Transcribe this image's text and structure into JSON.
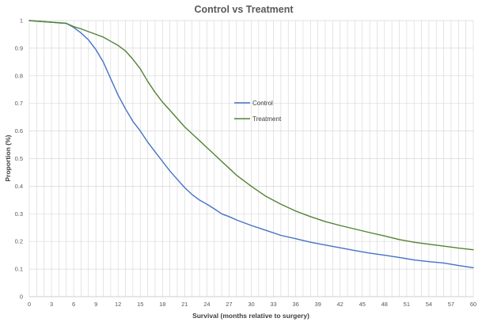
{
  "chart_data": {
    "type": "line",
    "title": "Control vs Treatment",
    "xlabel": "Survival (months relative to surgery)",
    "ylabel": "Proportion (%)",
    "xlim": [
      0,
      60
    ],
    "ylim": [
      0,
      1
    ],
    "grid": true,
    "legend_position": "center",
    "x_ticks": [
      0,
      3,
      6,
      9,
      12,
      15,
      18,
      21,
      24,
      27,
      30,
      33,
      36,
      39,
      42,
      45,
      48,
      51,
      54,
      57,
      60
    ],
    "y_ticks": [
      0,
      0.1,
      0.2,
      0.3,
      0.4,
      0.5,
      0.6,
      0.7,
      0.8,
      0.9,
      1
    ],
    "y_tick_labels": [
      "0",
      "0.1",
      "0.2",
      "0.3",
      "0.4",
      "0.5",
      "0.6",
      "0.7",
      "0.8",
      "0.9",
      "1"
    ],
    "series": [
      {
        "name": "Control",
        "color": "#4472c4",
        "x": [
          0,
          5,
          6,
          7,
          8,
          9,
          10,
          11,
          12,
          13,
          14,
          15,
          16,
          17,
          18,
          19,
          20,
          21,
          22,
          23,
          24,
          25,
          26,
          27,
          28,
          30,
          32,
          34,
          36,
          38,
          40,
          42,
          44,
          46,
          48,
          50,
          52,
          54,
          56,
          58,
          60
        ],
        "values": [
          1.0,
          0.99,
          0.975,
          0.955,
          0.93,
          0.895,
          0.85,
          0.79,
          0.73,
          0.68,
          0.635,
          0.6,
          0.56,
          0.525,
          0.49,
          0.455,
          0.425,
          0.395,
          0.37,
          0.35,
          0.335,
          0.318,
          0.3,
          0.29,
          0.278,
          0.258,
          0.24,
          0.222,
          0.21,
          0.197,
          0.187,
          0.177,
          0.167,
          0.158,
          0.15,
          0.142,
          0.133,
          0.127,
          0.122,
          0.113,
          0.105
        ]
      },
      {
        "name": "Treatment",
        "color": "#548235",
        "x": [
          0,
          5,
          6,
          7,
          8,
          9,
          10,
          11,
          12,
          13,
          14,
          15,
          16,
          17,
          18,
          19,
          20,
          21,
          22,
          23,
          24,
          25,
          26,
          27,
          28,
          30,
          32,
          34,
          36,
          38,
          40,
          42,
          44,
          46,
          48,
          50,
          52,
          54,
          56,
          58,
          60
        ],
        "values": [
          1.0,
          0.99,
          0.978,
          0.97,
          0.96,
          0.95,
          0.94,
          0.925,
          0.91,
          0.89,
          0.86,
          0.825,
          0.78,
          0.74,
          0.705,
          0.675,
          0.645,
          0.615,
          0.59,
          0.565,
          0.54,
          0.515,
          0.49,
          0.465,
          0.44,
          0.4,
          0.363,
          0.335,
          0.31,
          0.29,
          0.272,
          0.258,
          0.245,
          0.232,
          0.22,
          0.207,
          0.197,
          0.19,
          0.183,
          0.176,
          0.17
        ]
      }
    ]
  }
}
